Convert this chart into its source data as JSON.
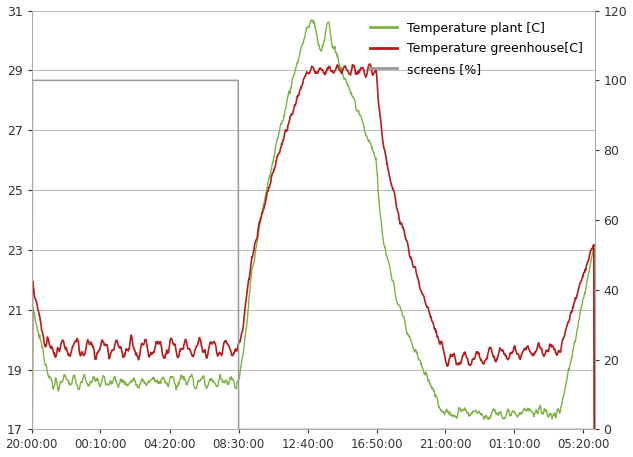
{
  "title": "",
  "ylim_left": [
    17,
    31
  ],
  "ylim_right": [
    0,
    120
  ],
  "yticks_left": [
    17,
    19,
    21,
    23,
    25,
    27,
    29,
    31
  ],
  "yticks_right": [
    0,
    20,
    40,
    60,
    80,
    100,
    120
  ],
  "xtick_labels": [
    "20:00:00",
    "00:10:00",
    "04:20:00",
    "08:30:00",
    "12:40:00",
    "16:50:00",
    "21:00:00",
    "01:10:00",
    "05:20:00"
  ],
  "plant_color": "#7cb342",
  "greenhouse_color": "#b71c1c",
  "screens_color": "#999999",
  "background_color": "#ffffff",
  "grid_color": "#bbbbbb",
  "legend_labels": [
    "Temperature plant [C]",
    "Temperature greenhouse[C]",
    "screens [%]"
  ],
  "n_points": 1440,
  "tick_fractions": [
    0.0,
    0.122,
    0.245,
    0.368,
    0.49,
    0.613,
    0.735,
    0.857,
    0.98
  ]
}
